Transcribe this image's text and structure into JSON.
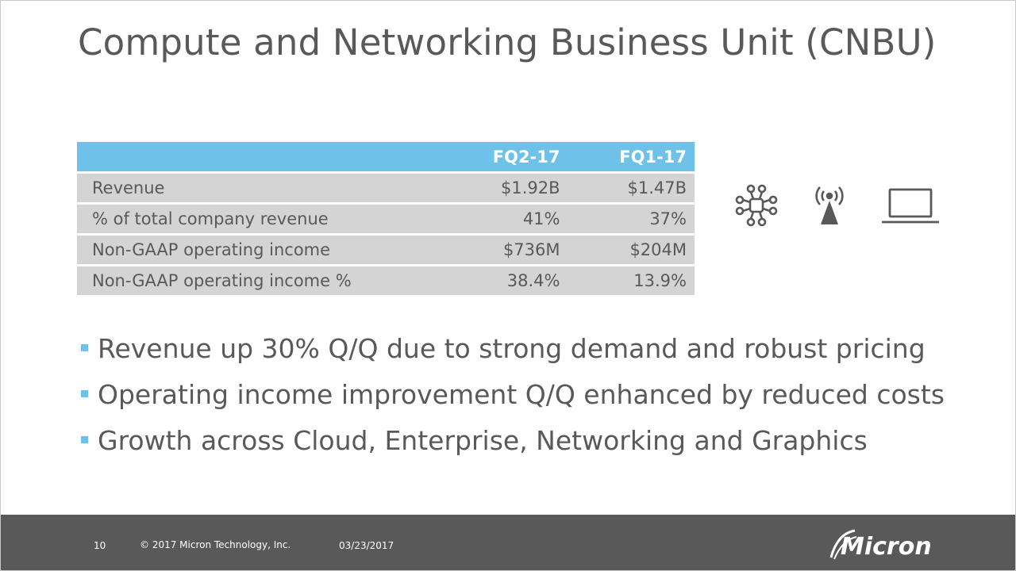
{
  "slide": {
    "title": "Compute and Networking Business Unit (CNBU)"
  },
  "table": {
    "headers": [
      "",
      "FQ2-17",
      "FQ1-17"
    ],
    "rows": [
      {
        "label": "Revenue",
        "fq2": "$1.92B",
        "fq1": "$1.47B"
      },
      {
        "label": "% of total company revenue",
        "fq2": "41%",
        "fq1": "37%"
      },
      {
        "label": "Non-GAAP operating income",
        "fq2": "$736M",
        "fq1": "$204M"
      },
      {
        "label": "Non-GAAP operating income %",
        "fq2": "38.4%",
        "fq1": "13.9%"
      }
    ]
  },
  "icons": [
    "network-nodes-icon",
    "cell-tower-icon",
    "laptop-icon"
  ],
  "bullets": [
    "Revenue up 30% Q/Q due to strong demand and robust pricing",
    "Operating income improvement Q/Q enhanced by reduced costs",
    "Growth across Cloud, Enterprise, Networking and Graphics"
  ],
  "footer": {
    "page_number": "10",
    "copyright": "© 2017 Micron Technology, Inc.",
    "date": "03/23/2017",
    "logo_text": "Micron"
  },
  "colors": {
    "accent": "#6ec1e8",
    "text": "#595959",
    "row_fill": "#d4d4d4",
    "footer_bg": "#595959"
  }
}
